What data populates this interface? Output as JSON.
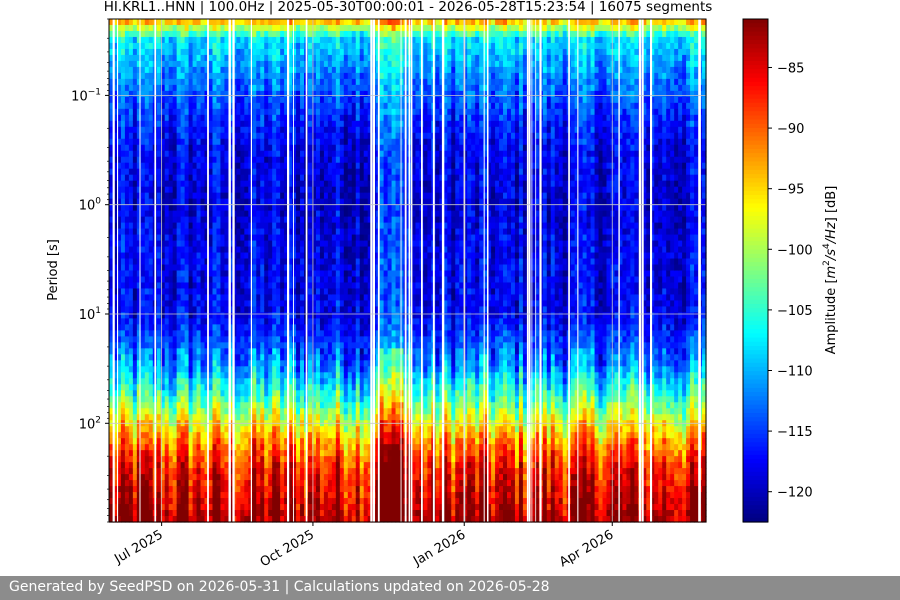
{
  "footer": {
    "text": "Generated by SeedPSD on 2026-05-31 | Calculations updated on 2026-05-28"
  },
  "chart_data": {
    "type": "heatmap",
    "title": "HI.KRL1..HNN | 100.0Hz | 2025-05-30T00:00:01 - 2026-05-28T15:23:54 | 16075 segments",
    "xlabel": "",
    "ylabel": "Period [s]",
    "colorbar_label": "Amplitude [m²/s⁴/Hz] [dB]",
    "colorbar_label_parts": {
      "prefix": "Amplitude [",
      "m": "m",
      "sup2": "2",
      "slash": "/s",
      "sup4": "4",
      "hz": "/Hz",
      "suffix": "] [dB]"
    },
    "colormap": "jet",
    "x_range": [
      "2025-05-30",
      "2026-05-28"
    ],
    "x_ticks": [
      {
        "date": "2025-07-01",
        "label": "Jul 2025"
      },
      {
        "date": "2025-10-01",
        "label": "Oct 2025"
      },
      {
        "date": "2026-01-01",
        "label": "Jan 2026"
      },
      {
        "date": "2026-04-01",
        "label": "Apr 2026"
      }
    ],
    "y_scale": "log",
    "y_inverted": true,
    "y_range": [
      0.02,
      800
    ],
    "y_ticks": [
      {
        "value": 0.1,
        "base": "10",
        "exp": "−1"
      },
      {
        "value": 1,
        "base": "10",
        "exp": "0"
      },
      {
        "value": 10,
        "base": "10",
        "exp": "1"
      },
      {
        "value": 100,
        "base": "10",
        "exp": "2"
      }
    ],
    "grid": true,
    "colorbar_range": [
      -122.5,
      -81
    ],
    "colorbar_ticks": [
      -85,
      -90,
      -95,
      -100,
      -105,
      -110,
      -115,
      -120
    ],
    "colorbar_tick_labels": [
      "−85",
      "−90",
      "−95",
      "−100",
      "−105",
      "−110",
      "−115",
      "−120"
    ],
    "mean_profile": [
      {
        "period": 0.02,
        "db": -92
      },
      {
        "period": 0.03,
        "db": -108
      },
      {
        "period": 0.1,
        "db": -114
      },
      {
        "period": 0.3,
        "db": -118
      },
      {
        "period": 1,
        "db": -119
      },
      {
        "period": 3,
        "db": -118
      },
      {
        "period": 10,
        "db": -118
      },
      {
        "period": 30,
        "db": -112
      },
      {
        "period": 60,
        "db": -104
      },
      {
        "period": 100,
        "db": -97
      },
      {
        "period": 150,
        "db": -92
      },
      {
        "period": 250,
        "db": -87
      },
      {
        "period": 800,
        "db": -82
      }
    ]
  }
}
